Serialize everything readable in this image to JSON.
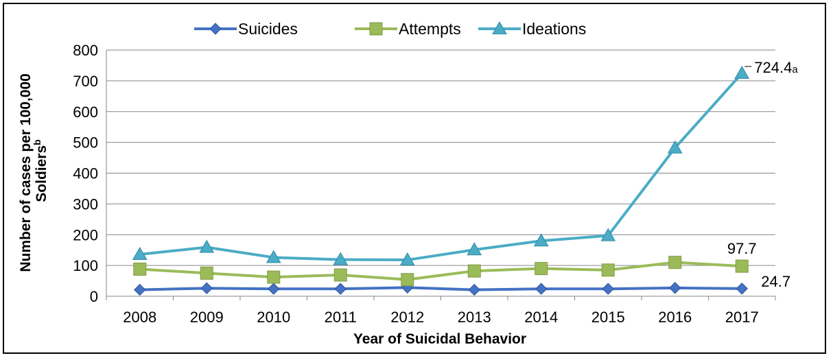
{
  "chart_data": {
    "type": "line",
    "xlabel": "Year of Suicidal Behavior",
    "ylabel": "Number of cases per 100,000 Soldiers",
    "ylabel_sup": "b",
    "ylim": [
      0,
      800
    ],
    "yticks": [
      "0",
      "100",
      "200",
      "300",
      "400",
      "500",
      "600",
      "700",
      "800"
    ],
    "categories": [
      "2008",
      "2009",
      "2010",
      "2011",
      "2012",
      "2013",
      "2014",
      "2015",
      "2016",
      "2017"
    ],
    "grid": true,
    "legend_position": "top",
    "series": [
      {
        "name": "Suicides",
        "color": "#4472C4",
        "marker": "diamond",
        "values": [
          21,
          26,
          24,
          24,
          28,
          21,
          24,
          24,
          27,
          24.7
        ]
      },
      {
        "name": "Attempts",
        "color": "#9BBB59",
        "marker": "square",
        "values": [
          88,
          75,
          62,
          69,
          54,
          82,
          90,
          85,
          110,
          97.7
        ]
      },
      {
        "name": "Ideations",
        "color": "#4BACC6",
        "marker": "triangle",
        "values": [
          136,
          159,
          126,
          119,
          118,
          151,
          180,
          197,
          482,
          724.4
        ]
      }
    ],
    "annotations": [
      {
        "series": "Ideations",
        "label": "724.4",
        "sup": "a"
      },
      {
        "series": "Attempts",
        "label": "97.7"
      },
      {
        "series": "Suicides",
        "label": "24.7"
      }
    ]
  }
}
